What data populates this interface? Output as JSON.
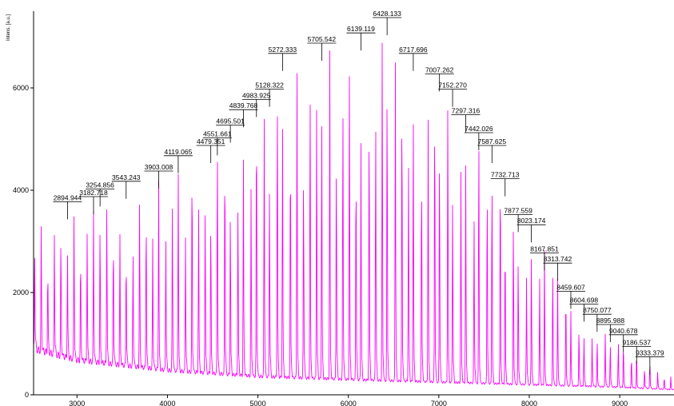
{
  "chart_data": {
    "type": "line",
    "title": "",
    "xlabel": "",
    "ylabel": "Intens. [a.u.]",
    "xlim": [
      2520,
      9600
    ],
    "ylim": [
      0,
      7500
    ],
    "grid": false,
    "x_ticks": [
      3000,
      4000,
      5000,
      6000,
      7000,
      8000,
      9000
    ],
    "y_ticks": [
      0,
      2000,
      4000,
      6000
    ],
    "line_color": "#ff00ff",
    "peak_spacing": 72.5,
    "baseline": [
      [
        2520,
        900
      ],
      [
        3000,
        680
      ],
      [
        4000,
        480
      ],
      [
        5000,
        360
      ],
      [
        6000,
        300
      ],
      [
        7000,
        250
      ],
      [
        8000,
        200
      ],
      [
        9000,
        150
      ],
      [
        9600,
        100
      ]
    ],
    "peak_envelope": [
      [
        2520,
        3650
      ],
      [
        2600,
        3300
      ],
      [
        3000,
        3600
      ],
      [
        3500,
        3950
      ],
      [
        4000,
        4350
      ],
      [
        4500,
        4900
      ],
      [
        5000,
        5800
      ],
      [
        5500,
        6600
      ],
      [
        6000,
        6850
      ],
      [
        6430,
        7250
      ],
      [
        6700,
        6550
      ],
      [
        7000,
        6150
      ],
      [
        7500,
        5050
      ],
      [
        8000,
        3350
      ],
      [
        8500,
        1850
      ],
      [
        9000,
        1050
      ],
      [
        9600,
        300
      ]
    ],
    "labeled_peaks": [
      {
        "label": "2894.944",
        "x": 2894.944,
        "y": 3650
      },
      {
        "label": "3182.718",
        "x": 3182.718,
        "y": 3750
      },
      {
        "label": "3254.856",
        "x": 3254.856,
        "y": 3900
      },
      {
        "label": "3543.243",
        "x": 3543.243,
        "y": 4050
      },
      {
        "label": "3903.008",
        "x": 3903.008,
        "y": 4250
      },
      {
        "label": "4119.065",
        "x": 4119.065,
        "y": 4550
      },
      {
        "label": "4479.351",
        "x": 4479.351,
        "y": 4750
      },
      {
        "label": "4551.661",
        "x": 4551.661,
        "y": 4900
      },
      {
        "label": "4695.501",
        "x": 4695.501,
        "y": 5150
      },
      {
        "label": "4839.768",
        "x": 4839.768,
        "y": 5450
      },
      {
        "label": "4983.925",
        "x": 4983.925,
        "y": 5650
      },
      {
        "label": "5128.322",
        "x": 5128.322,
        "y": 5850
      },
      {
        "label": "5272.333",
        "x": 5272.333,
        "y": 6550
      },
      {
        "label": "5705.542",
        "x": 5705.542,
        "y": 6750
      },
      {
        "label": "6139.119",
        "x": 6139.119,
        "y": 6950
      },
      {
        "label": "6428.133",
        "x": 6428.133,
        "y": 7250
      },
      {
        "label": "6717.696",
        "x": 6717.696,
        "y": 6550
      },
      {
        "label": "7007.262",
        "x": 7007.262,
        "y": 6150
      },
      {
        "label": "7152.270",
        "x": 7152.27,
        "y": 5850
      },
      {
        "label": "7297.316",
        "x": 7297.316,
        "y": 5350
      },
      {
        "label": "7442.026",
        "x": 7442.026,
        "y": 5000
      },
      {
        "label": "7587.625",
        "x": 7587.625,
        "y": 4750
      },
      {
        "label": "7732.713",
        "x": 7732.713,
        "y": 4100
      },
      {
        "label": "7877.559",
        "x": 7877.559,
        "y": 3400
      },
      {
        "label": "8023.174",
        "x": 8023.174,
        "y": 3200
      },
      {
        "label": "8167.851",
        "x": 8167.851,
        "y": 2650
      },
      {
        "label": "8313.742",
        "x": 8313.742,
        "y": 2450
      },
      {
        "label": "8459.607",
        "x": 8459.607,
        "y": 1900
      },
      {
        "label": "8604.698",
        "x": 8604.698,
        "y": 1650
      },
      {
        "label": "8750.077",
        "x": 8750.077,
        "y": 1450
      },
      {
        "label": "8895.988",
        "x": 8895.988,
        "y": 1250
      },
      {
        "label": "9040.678",
        "x": 9040.678,
        "y": 1050
      },
      {
        "label": "9186.537",
        "x": 9186.537,
        "y": 820
      },
      {
        "label": "9333.379",
        "x": 9333.379,
        "y": 620
      }
    ]
  }
}
